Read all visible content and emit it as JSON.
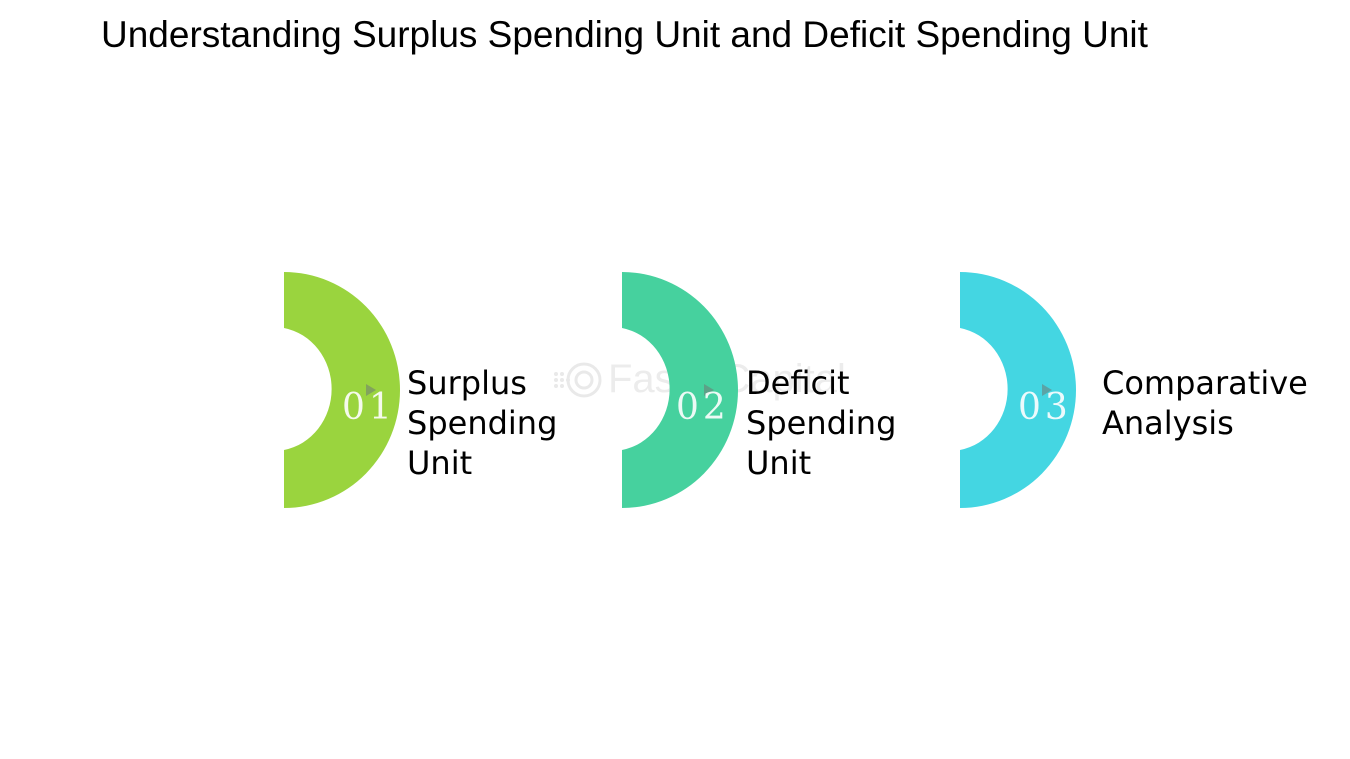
{
  "title": "Understanding Surplus Spending Unit and Deficit Spending Unit",
  "steps": [
    {
      "number": "01",
      "label": "Surplus Spending Unit",
      "color": "#9ad43e"
    },
    {
      "number": "02",
      "label": "Deficit Spending Unit",
      "color": "#46d19e"
    },
    {
      "number": "03",
      "label": "Comparative Analysis",
      "color": "#44d6e2"
    }
  ],
  "watermark": {
    "text": "FasterCapital",
    "icon": "gear-logo-icon"
  }
}
